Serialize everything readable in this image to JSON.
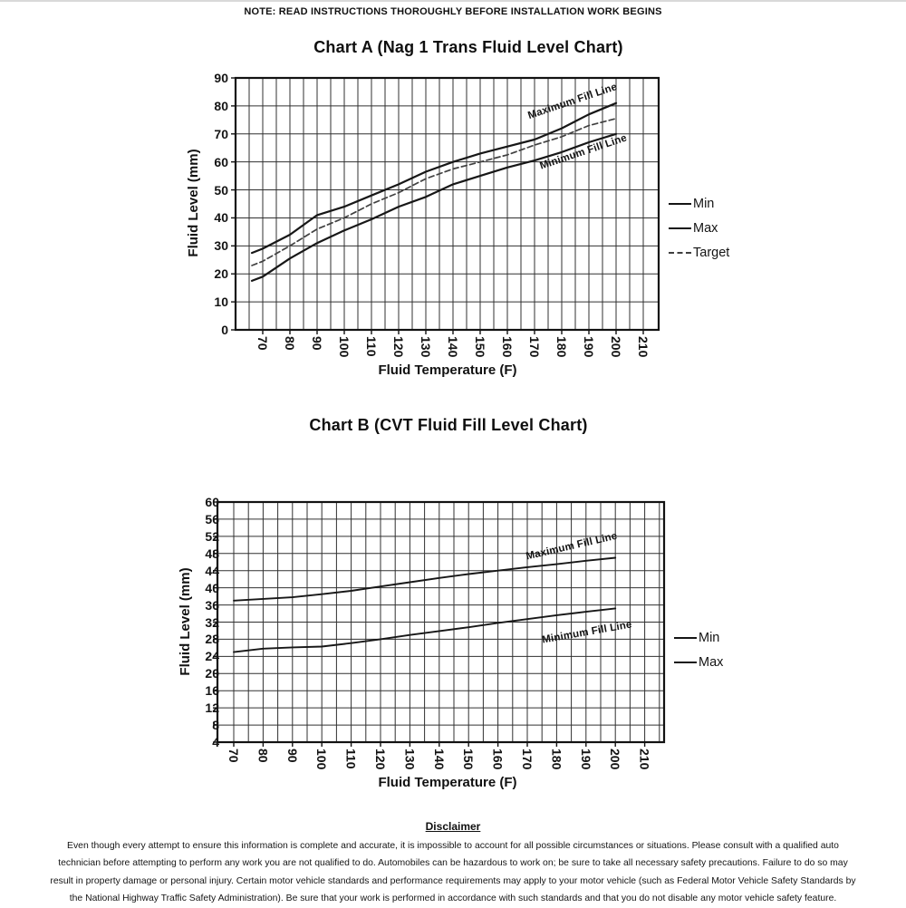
{
  "page": {
    "note": "NOTE: READ INSTRUCTIONS THOROUGHLY BEFORE INSTALLATION WORK BEGINS"
  },
  "chart_data": [
    {
      "id": "chart-a",
      "type": "line",
      "title": "Chart A (Nag 1 Trans Fluid Level Chart)",
      "xlabel": "Fluid Temperature (F)",
      "ylabel": "Fluid Level (mm)",
      "x_ticks": [
        70,
        80,
        90,
        100,
        110,
        120,
        130,
        140,
        150,
        160,
        170,
        180,
        190,
        200,
        210
      ],
      "y_ticks": [
        90,
        80,
        70,
        60,
        50,
        40,
        30,
        20,
        10,
        0
      ],
      "ylim": [
        0,
        90
      ],
      "grid": "on",
      "legend_position": "right",
      "legend": [
        {
          "label": "Min",
          "style": "solid"
        },
        {
          "label": "Max",
          "style": "solid"
        },
        {
          "label": "Target",
          "style": "dashed"
        }
      ],
      "annotations": {
        "max": "Maximum Fill Line",
        "min": "Minimum Fill Line"
      },
      "series": [
        {
          "name": "Max",
          "style": "solid",
          "points": [
            [
              66,
              27.5
            ],
            [
              70,
              29
            ],
            [
              80,
              34
            ],
            [
              90,
              41
            ],
            [
              100,
              44
            ],
            [
              110,
              48
            ],
            [
              120,
              52
            ],
            [
              130,
              56.5
            ],
            [
              140,
              60
            ],
            [
              150,
              63
            ],
            [
              160,
              65.5
            ],
            [
              170,
              68
            ],
            [
              180,
              72
            ],
            [
              190,
              77
            ],
            [
              200,
              81
            ]
          ]
        },
        {
          "name": "Target",
          "style": "dashed",
          "points": [
            [
              66,
              23
            ],
            [
              70,
              24.5
            ],
            [
              80,
              30
            ],
            [
              90,
              36
            ],
            [
              100,
              40
            ],
            [
              110,
              45
            ],
            [
              120,
              49
            ],
            [
              130,
              54
            ],
            [
              140,
              57.5
            ],
            [
              150,
              60
            ],
            [
              160,
              62.5
            ],
            [
              170,
              66
            ],
            [
              180,
              69
            ],
            [
              190,
              73
            ],
            [
              200,
              75.5
            ]
          ]
        },
        {
          "name": "Min",
          "style": "solid",
          "points": [
            [
              66,
              17.5
            ],
            [
              70,
              19
            ],
            [
              80,
              25.5
            ],
            [
              90,
              31
            ],
            [
              100,
              35.5
            ],
            [
              110,
              39.5
            ],
            [
              120,
              44
            ],
            [
              130,
              47.5
            ],
            [
              140,
              52
            ],
            [
              150,
              55
            ],
            [
              160,
              58
            ],
            [
              170,
              60.5
            ],
            [
              180,
              63.5
            ],
            [
              190,
              67
            ],
            [
              200,
              70
            ]
          ]
        }
      ]
    },
    {
      "id": "chart-b",
      "type": "line",
      "title": "Chart B (CVT Fluid Fill Level Chart)",
      "xlabel": "Fluid Temperature (F)",
      "ylabel": "Fluid Level (mm)",
      "x_ticks": [
        70,
        80,
        90,
        100,
        110,
        120,
        130,
        140,
        150,
        160,
        170,
        180,
        190,
        200,
        210
      ],
      "y_ticks": [
        60,
        56,
        52,
        48,
        44,
        40,
        36,
        32,
        28,
        24,
        20,
        16,
        12,
        8,
        4
      ],
      "ylim": [
        4,
        60
      ],
      "grid": "on",
      "legend_position": "right",
      "legend": [
        {
          "label": "Min",
          "style": "solid"
        },
        {
          "label": "Max",
          "style": "solid"
        }
      ],
      "annotations": {
        "max": "Maximum Fill Line",
        "min": "Minimum Fill Line"
      },
      "series": [
        {
          "name": "Max",
          "style": "solid",
          "points": [
            [
              70,
              37
            ],
            [
              80,
              37.4
            ],
            [
              90,
              37.8
            ],
            [
              100,
              38.5
            ],
            [
              110,
              39.3
            ],
            [
              120,
              40.3
            ],
            [
              130,
              41.3
            ],
            [
              140,
              42.3
            ],
            [
              150,
              43.2
            ],
            [
              160,
              44
            ],
            [
              170,
              44.8
            ],
            [
              180,
              45.5
            ],
            [
              190,
              46.3
            ],
            [
              200,
              47
            ]
          ]
        },
        {
          "name": "Min",
          "style": "solid",
          "points": [
            [
              70,
              25
            ],
            [
              80,
              25.8
            ],
            [
              90,
              26.1
            ],
            [
              100,
              26.3
            ],
            [
              110,
              27.1
            ],
            [
              120,
              28
            ],
            [
              130,
              29
            ],
            [
              140,
              29.9
            ],
            [
              150,
              30.8
            ],
            [
              160,
              31.8
            ],
            [
              170,
              32.7
            ],
            [
              180,
              33.6
            ],
            [
              190,
              34.4
            ],
            [
              200,
              35.2
            ]
          ]
        }
      ]
    }
  ],
  "disclaimer": {
    "title": "Disclaimer",
    "body": "Even though every attempt to ensure this information is complete and accurate, it is impossible to account for all possible circumstances or situations.  Please consult with a qualified auto technician before attempting to perform any work you are not qualified to do.  Automobiles can be hazardous to work on; be sure to take all necessary safety precautions.  Failure to do so may result in property damage or personal injury.  Certain motor vehicle standards and performance requirements may apply to your motor vehicle (such as Federal Motor Vehicle Safety Standards by the National Highway Traffic Safety Administration).  Be sure that your work is performed in accordance with such standards and that you do not disable any motor vehicle safety feature."
  }
}
